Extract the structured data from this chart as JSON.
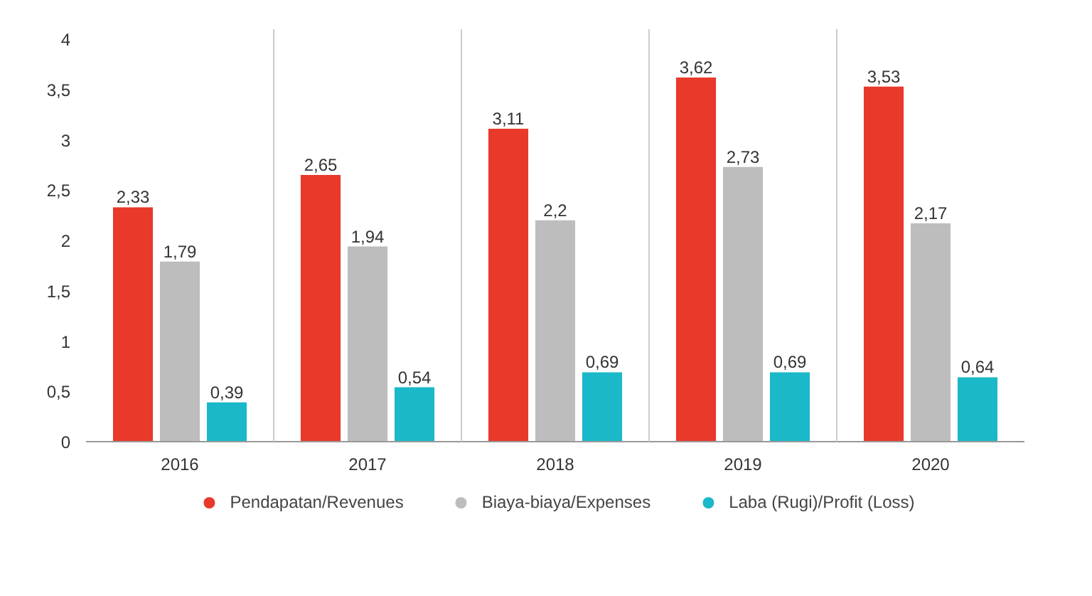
{
  "chart_data": {
    "type": "bar",
    "categories": [
      "2016",
      "2017",
      "2018",
      "2019",
      "2020"
    ],
    "series": [
      {
        "name": "Pendapatan/Revenues",
        "color": "#e8392a",
        "values": [
          2.33,
          2.65,
          3.11,
          3.62,
          3.53
        ],
        "value_labels": [
          "2,33",
          "2,65",
          "3,11",
          "3,62",
          "3,53"
        ]
      },
      {
        "name": "Biaya-biaya/Expenses",
        "color": "#bdbdbd",
        "values": [
          1.79,
          1.94,
          2.2,
          2.73,
          2.17
        ],
        "value_labels": [
          "1,79",
          "1,94",
          "2,2",
          "2,73",
          "2,17"
        ]
      },
      {
        "name": "Laba (Rugi)/Profit (Loss)",
        "color": "#1ab8c8",
        "values": [
          0.39,
          0.54,
          0.69,
          0.69,
          0.64
        ],
        "value_labels": [
          "0,39",
          "0,54",
          "0,69",
          "0,69",
          "0,64"
        ]
      }
    ],
    "ylim": [
      0,
      4.1
    ],
    "yticks": [
      0,
      {
        "value": 0.5,
        "label": "0,5"
      },
      1,
      {
        "value": 1.5,
        "label": "1,5"
      },
      2,
      {
        "value": 2.5,
        "label": "2,5"
      },
      3,
      {
        "value": 3.5,
        "label": "3,5"
      },
      4
    ],
    "grid": "x",
    "legend": "bottom"
  }
}
